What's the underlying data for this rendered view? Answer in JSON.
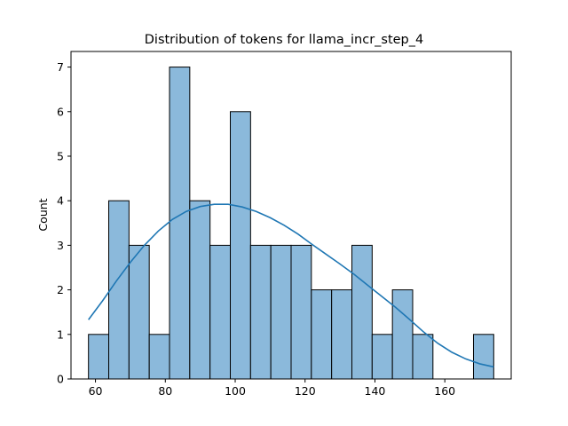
{
  "chart_data": {
    "type": "bar",
    "subtype": "histogram",
    "title": "Distribution of tokens for llama_incr_step_4",
    "xlabel": "",
    "ylabel": "Count",
    "xlim": [
      53,
      179
    ],
    "ylim": [
      0,
      7.35
    ],
    "xticks": [
      60,
      80,
      100,
      120,
      140,
      160
    ],
    "yticks": [
      0,
      1,
      2,
      3,
      4,
      5,
      6,
      7
    ],
    "bin_start": 58,
    "bin_width": 5.8,
    "bins": [
      {
        "x0": 58.0,
        "x1": 63.8,
        "count": 1
      },
      {
        "x0": 63.8,
        "x1": 69.6,
        "count": 4
      },
      {
        "x0": 69.6,
        "x1": 75.4,
        "count": 3
      },
      {
        "x0": 75.4,
        "x1": 81.2,
        "count": 1
      },
      {
        "x0": 81.2,
        "x1": 87.0,
        "count": 7
      },
      {
        "x0": 87.0,
        "x1": 92.8,
        "count": 4
      },
      {
        "x0": 92.8,
        "x1": 98.6,
        "count": 3
      },
      {
        "x0": 98.6,
        "x1": 104.4,
        "count": 6
      },
      {
        "x0": 104.4,
        "x1": 110.2,
        "count": 3
      },
      {
        "x0": 110.2,
        "x1": 116.0,
        "count": 3
      },
      {
        "x0": 116.0,
        "x1": 121.8,
        "count": 3
      },
      {
        "x0": 121.8,
        "x1": 127.6,
        "count": 2
      },
      {
        "x0": 127.6,
        "x1": 133.4,
        "count": 2
      },
      {
        "x0": 133.4,
        "x1": 139.2,
        "count": 3
      },
      {
        "x0": 139.2,
        "x1": 145.0,
        "count": 1
      },
      {
        "x0": 145.0,
        "x1": 150.8,
        "count": 2
      },
      {
        "x0": 150.8,
        "x1": 156.6,
        "count": 1
      },
      {
        "x0": 156.6,
        "x1": 162.4,
        "count": 0
      },
      {
        "x0": 162.4,
        "x1": 168.2,
        "count": 0
      },
      {
        "x0": 168.2,
        "x1": 174.0,
        "count": 1
      }
    ],
    "kde": {
      "x": [
        58,
        62,
        66,
        70,
        74,
        78,
        82,
        86,
        90,
        94,
        98,
        102,
        106,
        110,
        114,
        118,
        122,
        126,
        130,
        134,
        138,
        142,
        146,
        150,
        154,
        158,
        162,
        166,
        170,
        174
      ],
      "y": [
        1.33,
        1.75,
        2.2,
        2.62,
        3.0,
        3.32,
        3.58,
        3.76,
        3.87,
        3.92,
        3.92,
        3.86,
        3.76,
        3.62,
        3.45,
        3.25,
        3.02,
        2.8,
        2.58,
        2.35,
        2.1,
        1.85,
        1.6,
        1.33,
        1.05,
        0.8,
        0.6,
        0.45,
        0.34,
        0.27
      ]
    },
    "grid": false,
    "colors": {
      "bar_fill": "#8bb9db",
      "bar_edge": "#000000",
      "kde_line": "#1f77b4"
    }
  }
}
